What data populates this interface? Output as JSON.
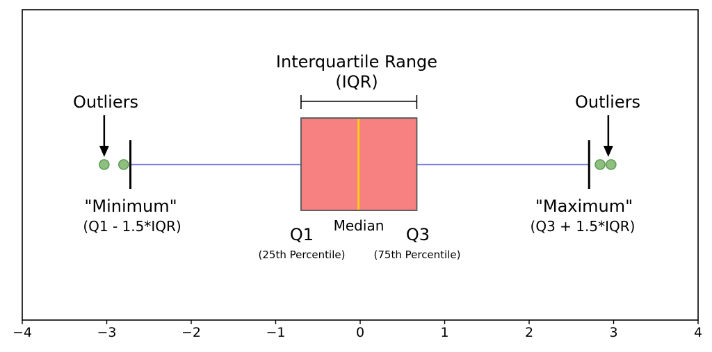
{
  "chart_data": {
    "type": "boxplot",
    "title": "",
    "xlabel": "",
    "ylabel": "",
    "xlim": [
      -4,
      4
    ],
    "x_ticks": [
      -4,
      -3,
      -2,
      -1,
      0,
      1,
      2,
      3,
      4
    ],
    "x_tick_labels": [
      "−4",
      "−3",
      "−2",
      "−1",
      "0",
      "1",
      "2",
      "3",
      "4"
    ],
    "grid": false,
    "box": {
      "q1": -0.7,
      "median": -0.02,
      "q3": 0.67,
      "whisker_low": -2.72,
      "whisker_high": 2.71,
      "outliers": [
        -3.03,
        -2.8,
        2.84,
        2.97
      ]
    },
    "colors": {
      "box_fill": "#f78181",
      "box_edge": "#5f5f5f",
      "median": "#ffd700",
      "whisker": "#8080e0",
      "outlier_fill": "#8fbf80",
      "outlier_edge": "#5a9a50",
      "axis": "#000000"
    }
  },
  "annotations": {
    "iqr_title": "Interquartile Range",
    "iqr_sub": "(IQR)",
    "outliers_left": "Outliers",
    "outliers_right": "Outliers",
    "minimum_title": "\"Minimum\"",
    "minimum_sub": "(Q1 - 1.5*IQR)",
    "maximum_title": "\"Maximum\"",
    "maximum_sub": "(Q3 + 1.5*IQR)",
    "q1_label": "Q1",
    "q1_sub": "(25th Percentile)",
    "median_label": "Median",
    "q3_label": "Q3",
    "q3_sub": "(75th Percentile)"
  }
}
